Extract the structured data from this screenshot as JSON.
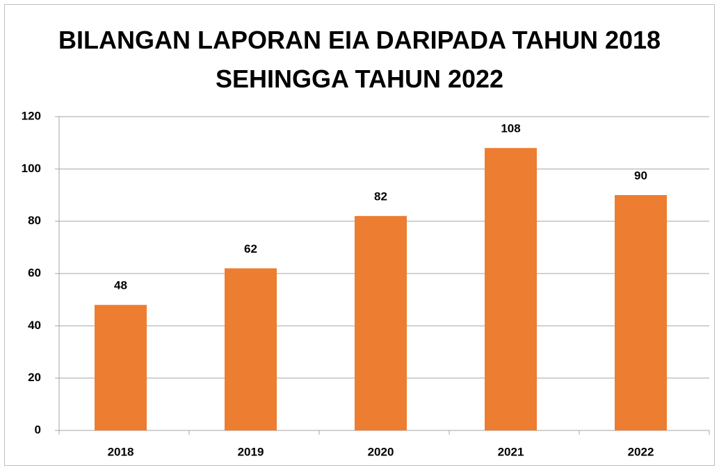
{
  "chart_data": {
    "type": "bar",
    "title": "BILANGAN LAPORAN EIA DARIPADA TAHUN 2018 SEHINGGA TAHUN 2022",
    "categories": [
      "2018",
      "2019",
      "2020",
      "2021",
      "2022"
    ],
    "values": [
      48,
      62,
      82,
      108,
      90
    ],
    "color": "#ed7d31",
    "ylim": [
      0,
      120
    ],
    "yticks": [
      0,
      20,
      40,
      60,
      80,
      100,
      120
    ],
    "grid": true
  }
}
